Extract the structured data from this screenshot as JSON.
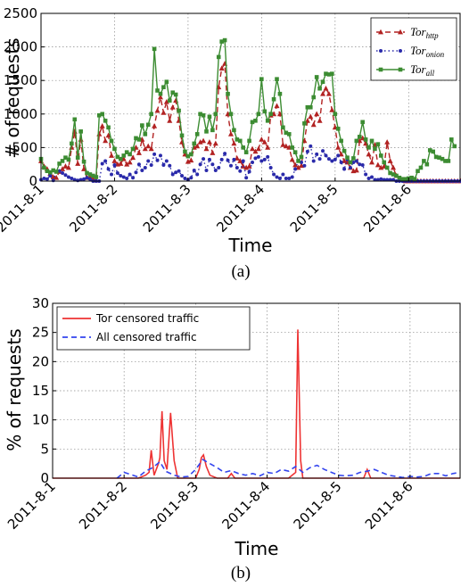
{
  "chart_data": [
    {
      "type": "line",
      "panel": "a",
      "caption": "(a)",
      "xlabel": "Time",
      "ylabel": "# of requests",
      "ylim": [
        0,
        2500
      ],
      "xlim": [
        0,
        5.7
      ],
      "yticks": [
        0,
        500,
        1000,
        1500,
        2000,
        2500
      ],
      "xtick_positions": [
        0,
        1,
        2,
        3,
        4,
        5
      ],
      "xtick_labels": [
        "2011-8-1",
        "2011-8-2",
        "2011-8-3",
        "2011-8-4",
        "2011-8-5",
        "2011-8-6"
      ],
      "grid": true,
      "legend_position": "top-right",
      "series": [
        {
          "name": "Tor",
          "subscript": "http",
          "color": "#b22222",
          "style": "dashed",
          "marker": "triangle",
          "x_step": 0.04166,
          "values": [
            300,
            220,
            180,
            110,
            60,
            50,
            140,
            180,
            220,
            200,
            500,
            740,
            260,
            620,
            180,
            50,
            60,
            30,
            10,
            700,
            820,
            600,
            680,
            380,
            300,
            250,
            260,
            330,
            250,
            280,
            350,
            500,
            420,
            620,
            480,
            520,
            480,
            820,
            1050,
            1250,
            1020,
            1180,
            900,
            1100,
            1200,
            900,
            580,
            400,
            290,
            310,
            500,
            520,
            580,
            600,
            480,
            580,
            420,
            560,
            1400,
            1680,
            1750,
            1000,
            700,
            560,
            340,
            300,
            220,
            200,
            220,
            480,
            440,
            480,
            620,
            580,
            500,
            980,
            1000,
            1120,
            1000,
            540,
            520,
            500,
            320,
            240,
            200,
            230,
            600,
            900,
            960,
            840,
            1000,
            900,
            1300,
            1380,
            1300,
            1060,
            800,
            500,
            400,
            300,
            280,
            200,
            150,
            160,
            600,
            640,
            560,
            400,
            280,
            540,
            240,
            200,
            220,
            580,
            300,
            200,
            80,
            30,
            20,
            0,
            0,
            0,
            0,
            0,
            0,
            0,
            0,
            0,
            0,
            0,
            0,
            0,
            0,
            0,
            0,
            0,
            0,
            0,
            0,
            0,
            0,
            0
          ]
        },
        {
          "name": "Tor",
          "subscript": "onion",
          "color": "#2a2aaa",
          "style": "dotted",
          "marker": "circle",
          "x_step": 0.04166,
          "values": [
            20,
            40,
            30,
            80,
            10,
            140,
            150,
            120,
            90,
            60,
            40,
            20,
            10,
            20,
            30,
            50,
            30,
            0,
            0,
            0,
            260,
            300,
            180,
            100,
            240,
            120,
            80,
            60,
            40,
            100,
            50,
            130,
            250,
            160,
            200,
            300,
            240,
            400,
            310,
            380,
            240,
            300,
            230,
            100,
            130,
            150,
            80,
            40,
            20,
            50,
            160,
            100,
            250,
            330,
            160,
            320,
            250,
            160,
            200,
            320,
            410,
            310,
            230,
            320,
            200,
            150,
            300,
            50,
            140,
            280,
            340,
            360,
            300,
            320,
            360,
            200,
            100,
            60,
            40,
            100,
            40,
            40,
            60,
            180,
            300,
            280,
            230,
            440,
            520,
            300,
            400,
            330,
            450,
            380,
            330,
            300,
            320,
            380,
            280,
            180,
            320,
            200,
            280,
            300,
            250,
            240,
            100,
            40,
            60,
            20,
            20,
            30,
            20,
            20,
            20,
            20,
            0,
            0,
            0,
            0,
            0,
            0,
            0,
            0,
            0,
            0,
            0,
            0,
            0,
            0,
            0,
            0,
            0,
            0,
            0,
            0,
            0,
            0
          ]
        },
        {
          "name": "Tor",
          "subscript": "all",
          "color": "#3c8c32",
          "style": "solid",
          "marker": "square",
          "x_step": 0.04166,
          "values": [
            330,
            200,
            150,
            130,
            160,
            140,
            260,
            300,
            350,
            320,
            560,
            920,
            350,
            740,
            290,
            120,
            100,
            80,
            60,
            980,
            1000,
            900,
            800,
            600,
            480,
            360,
            330,
            380,
            430,
            400,
            480,
            640,
            620,
            830,
            700,
            840,
            1000,
            1970,
            1350,
            1300,
            1400,
            1480,
            1200,
            1320,
            1290,
            1050,
            680,
            440,
            370,
            400,
            560,
            700,
            1000,
            980,
            740,
            960,
            760,
            1000,
            1850,
            2080,
            2100,
            1300,
            1000,
            760,
            620,
            600,
            500,
            430,
            600,
            880,
            900,
            1000,
            1520,
            1040,
            900,
            1000,
            1220,
            1520,
            1300,
            800,
            720,
            700,
            500,
            430,
            300,
            360,
            860,
            1100,
            1100,
            1250,
            1550,
            1380,
            1480,
            1600,
            1590,
            1600,
            1000,
            780,
            600,
            450,
            350,
            280,
            340,
            600,
            660,
            880,
            620,
            500,
            600,
            480,
            550,
            380,
            280,
            200,
            120,
            100,
            80,
            50,
            30,
            30,
            40,
            50,
            30,
            150,
            200,
            300,
            250,
            460,
            440,
            360,
            350,
            330,
            300,
            300,
            620,
            520
          ]
        }
      ]
    },
    {
      "type": "line",
      "panel": "b",
      "caption": "(b)",
      "xlabel": "Time",
      "ylabel": "% of requests",
      "ylim": [
        0,
        30
      ],
      "xlim": [
        0,
        5.7
      ],
      "yticks": [
        0,
        5,
        10,
        15,
        20,
        25,
        30
      ],
      "xtick_positions": [
        0,
        1,
        2,
        3,
        4,
        5
      ],
      "xtick_labels": [
        "2011-8-1",
        "2011-8-2",
        "2011-8-3",
        "2011-8-4",
        "2011-8-5",
        "2011-8-6"
      ],
      "grid": true,
      "legend_position": "top-left",
      "series": [
        {
          "name": "Tor censored traffic",
          "color": "#ee3333",
          "style": "solid",
          "points": [
            [
              0,
              0
            ],
            [
              1.2,
              0
            ],
            [
              1.3,
              0.5
            ],
            [
              1.35,
              1
            ],
            [
              1.38,
              4.8
            ],
            [
              1.42,
              0.5
            ],
            [
              1.48,
              2.5
            ],
            [
              1.5,
              3.5
            ],
            [
              1.53,
              11.5
            ],
            [
              1.56,
              3
            ],
            [
              1.6,
              1.5
            ],
            [
              1.65,
              11.2
            ],
            [
              1.7,
              3
            ],
            [
              1.75,
              0
            ],
            [
              2,
              0
            ],
            [
              2.05,
              1.5
            ],
            [
              2.08,
              3.5
            ],
            [
              2.11,
              4
            ],
            [
              2.15,
              2
            ],
            [
              2.2,
              0.5
            ],
            [
              2.3,
              0
            ],
            [
              2.45,
              0
            ],
            [
              2.5,
              0.8
            ],
            [
              2.55,
              0
            ],
            [
              2.9,
              0
            ],
            [
              3.3,
              0
            ],
            [
              3.4,
              1
            ],
            [
              3.43,
              25.5
            ],
            [
              3.47,
              3
            ],
            [
              3.5,
              0
            ],
            [
              4.35,
              0
            ],
            [
              4.4,
              1.5
            ],
            [
              4.45,
              0
            ],
            [
              5.7,
              0
            ]
          ]
        },
        {
          "name": "All censored traffic",
          "color": "#3344ee",
          "style": "dashed",
          "points": [
            [
              0.9,
              0
            ],
            [
              1.0,
              1.0
            ],
            [
              1.1,
              0.6
            ],
            [
              1.2,
              0.2
            ],
            [
              1.3,
              1.2
            ],
            [
              1.4,
              1.8
            ],
            [
              1.5,
              2.8
            ],
            [
              1.58,
              1.2
            ],
            [
              1.7,
              0.5
            ],
            [
              1.8,
              0.2
            ],
            [
              1.9,
              0.3
            ],
            [
              2.0,
              1.5
            ],
            [
              2.1,
              3.2
            ],
            [
              2.2,
              2.5
            ],
            [
              2.3,
              1.8
            ],
            [
              2.4,
              1.0
            ],
            [
              2.5,
              1.3
            ],
            [
              2.6,
              0.8
            ],
            [
              2.7,
              0.5
            ],
            [
              2.8,
              0.8
            ],
            [
              2.9,
              0.4
            ],
            [
              3.0,
              1.0
            ],
            [
              3.1,
              0.8
            ],
            [
              3.2,
              1.5
            ],
            [
              3.3,
              1.2
            ],
            [
              3.4,
              2.0
            ],
            [
              3.5,
              1.0
            ],
            [
              3.6,
              1.8
            ],
            [
              3.7,
              2.2
            ],
            [
              3.8,
              1.5
            ],
            [
              3.9,
              1.0
            ],
            [
              4.0,
              0.5
            ],
            [
              4.1,
              0.4
            ],
            [
              4.2,
              0.5
            ],
            [
              4.3,
              1.0
            ],
            [
              4.4,
              1.2
            ],
            [
              4.5,
              1.5
            ],
            [
              4.6,
              1.0
            ],
            [
              4.7,
              0.5
            ],
            [
              4.8,
              0.3
            ],
            [
              4.9,
              0.1
            ],
            [
              5.0,
              0.3
            ],
            [
              5.1,
              0.2
            ],
            [
              5.2,
              0.3
            ],
            [
              5.3,
              0.8
            ],
            [
              5.4,
              0.8
            ],
            [
              5.5,
              0.4
            ],
            [
              5.6,
              0.8
            ],
            [
              5.7,
              1.0
            ]
          ]
        }
      ]
    }
  ]
}
